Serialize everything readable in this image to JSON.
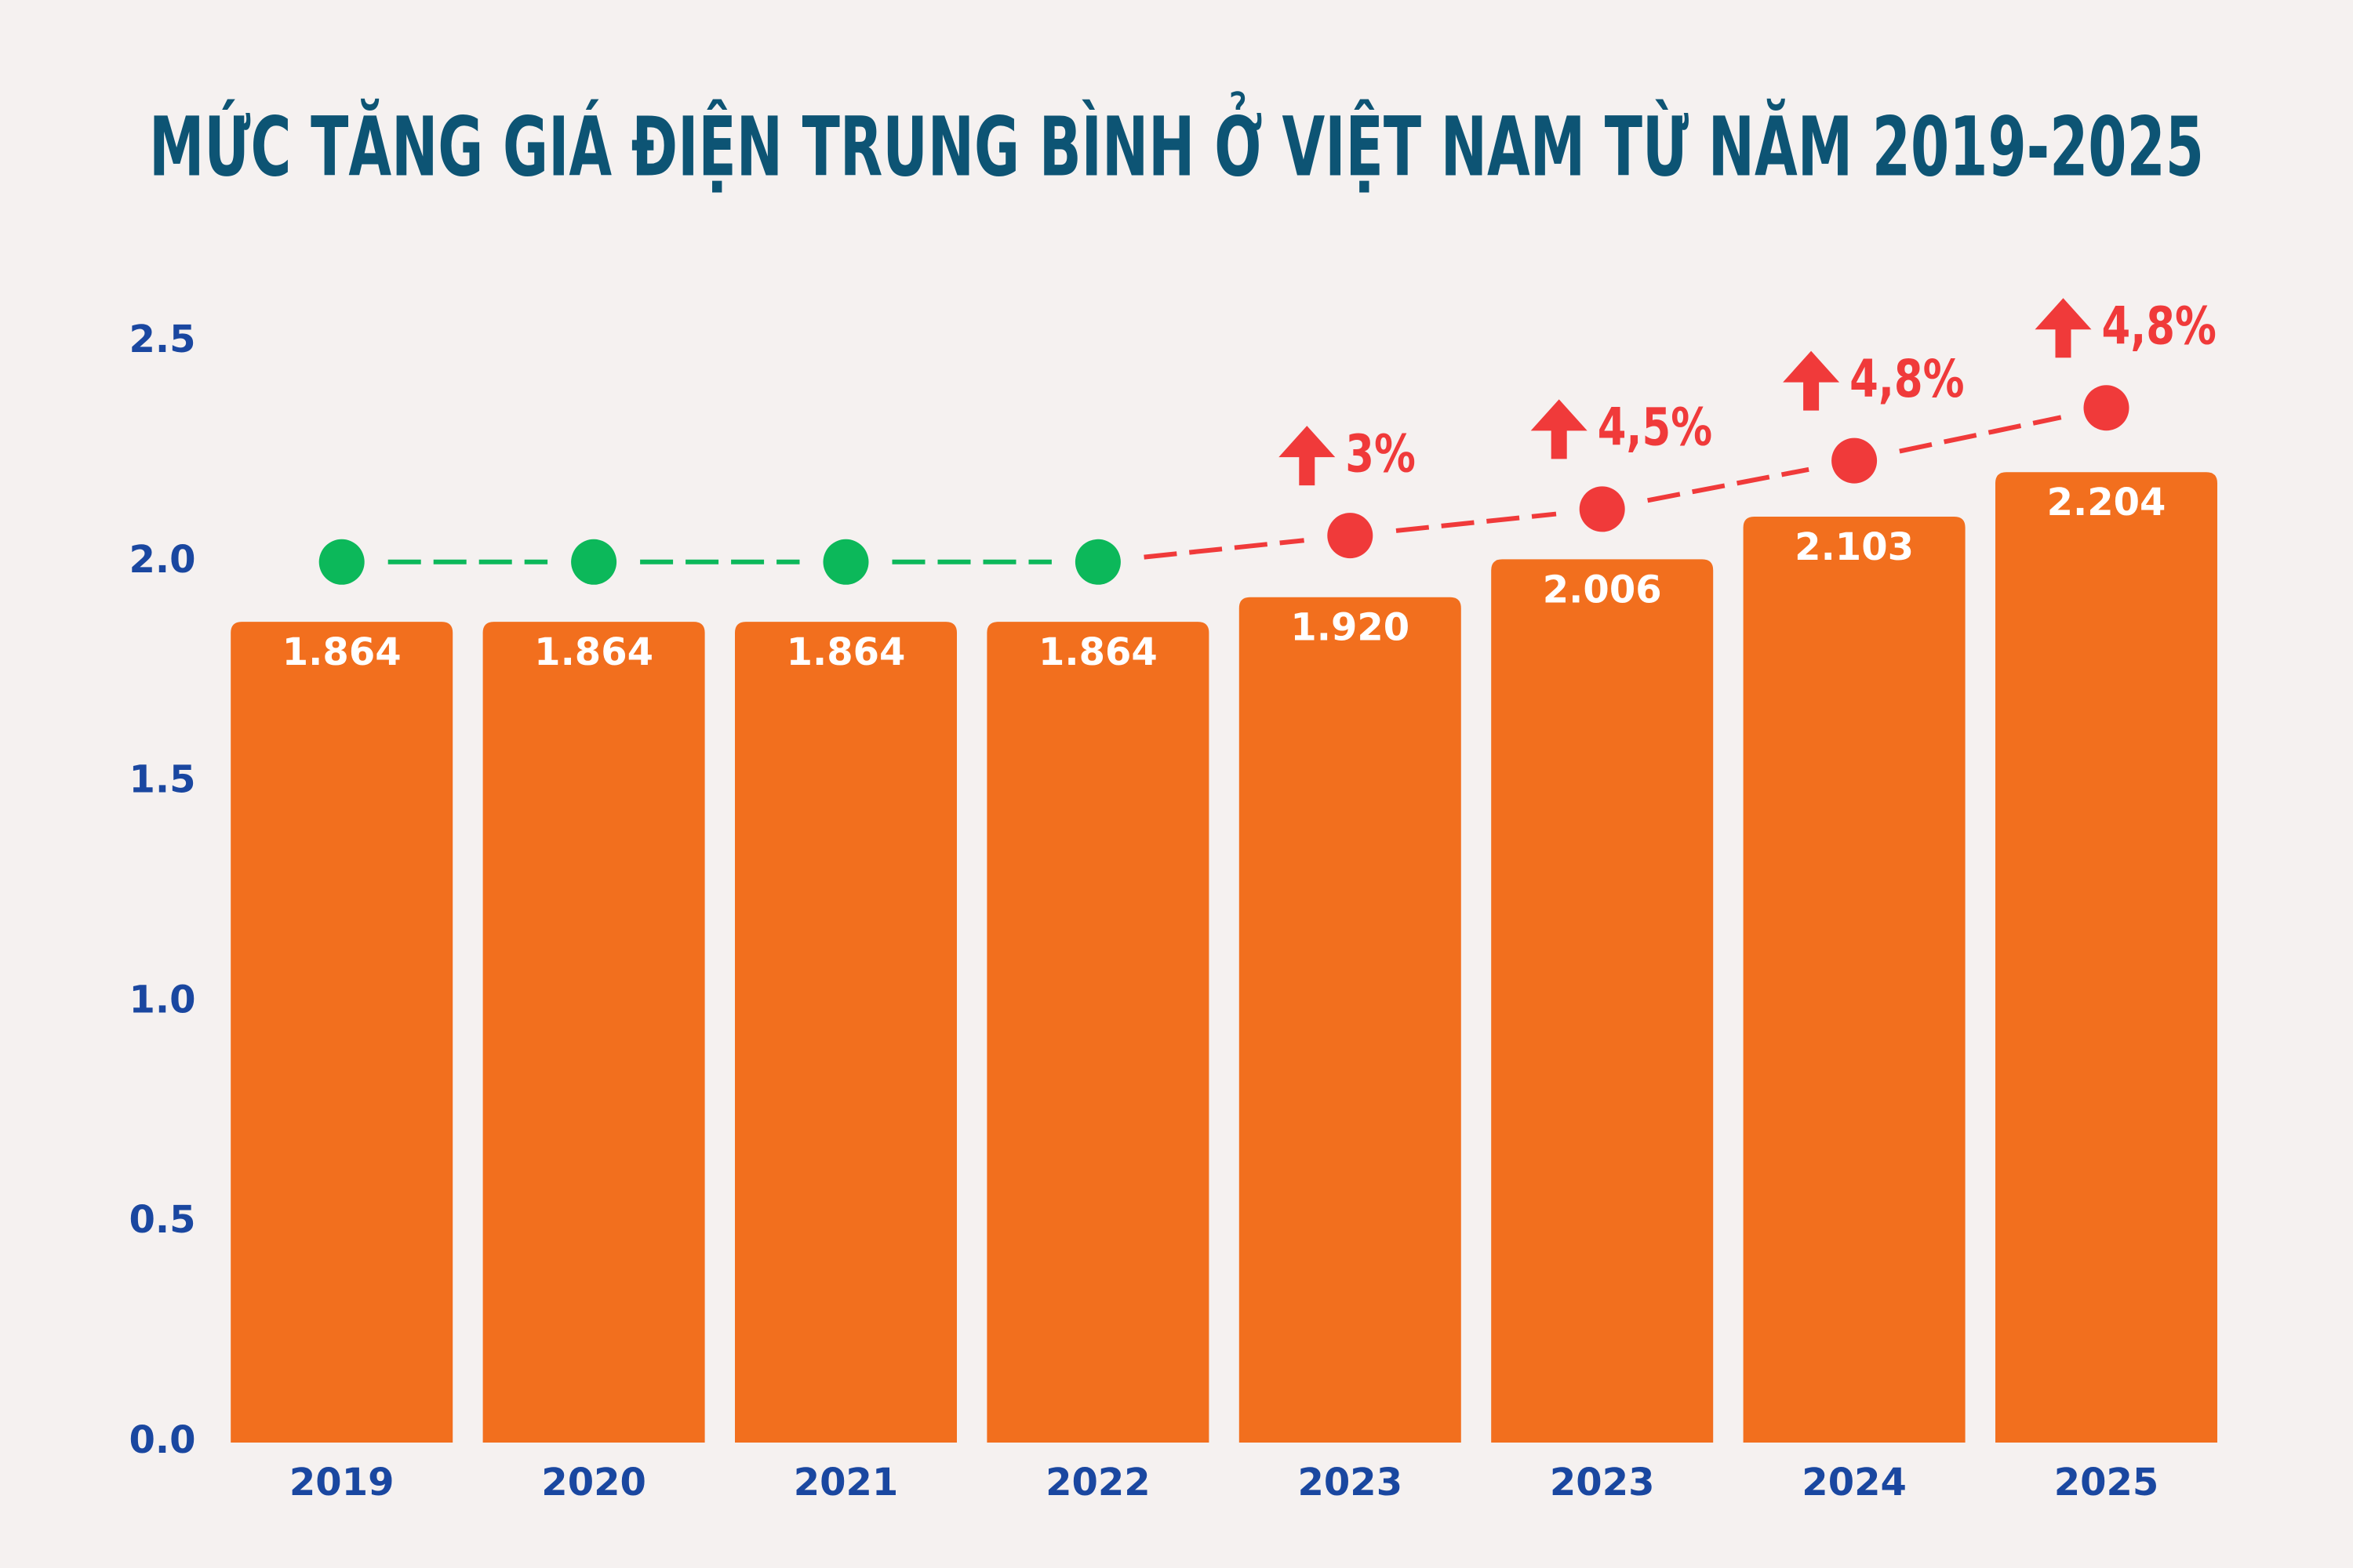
{
  "chart_data": {
    "type": "bar",
    "title": "MỨC TĂNG GIÁ ĐIỆN TRUNG BÌNH Ở VIỆT NAM TỪ NĂM 2019-2025",
    "categories": [
      "2019",
      "2020",
      "2021",
      "2022",
      "2023",
      "2023",
      "2024",
      "2025"
    ],
    "values": [
      1.864,
      1.864,
      1.864,
      1.864,
      1.92,
      2.006,
      2.103,
      2.204
    ],
    "value_labels": [
      "1.864",
      "1.864",
      "1.864",
      "1.864",
      "1.920",
      "2.006",
      "2.103",
      "2.204"
    ],
    "color": "#f26f1e",
    "line": {
      "values": [
        2.0,
        2.0,
        2.0,
        2.0,
        2.06,
        2.12,
        2.23,
        2.35
      ],
      "colors": [
        "#0cb85a",
        "#0cb85a",
        "#0cb85a",
        "#0cb85a",
        "#f03a3a",
        "#f03a3a",
        "#f03a3a",
        "#f03a3a"
      ],
      "point_labels": [
        null,
        null,
        null,
        null,
        "3%",
        "4,5%",
        "4,8%",
        "4,8%"
      ]
    },
    "ylim": [
      0,
      2.5
    ],
    "yticks": [
      {
        "value": 0,
        "label": "0.0"
      },
      0.5,
      {
        "value": 1,
        "label": "1.0"
      },
      1.5,
      {
        "value": 2,
        "label": "2.0"
      },
      2.5
    ],
    "grid": false
  }
}
